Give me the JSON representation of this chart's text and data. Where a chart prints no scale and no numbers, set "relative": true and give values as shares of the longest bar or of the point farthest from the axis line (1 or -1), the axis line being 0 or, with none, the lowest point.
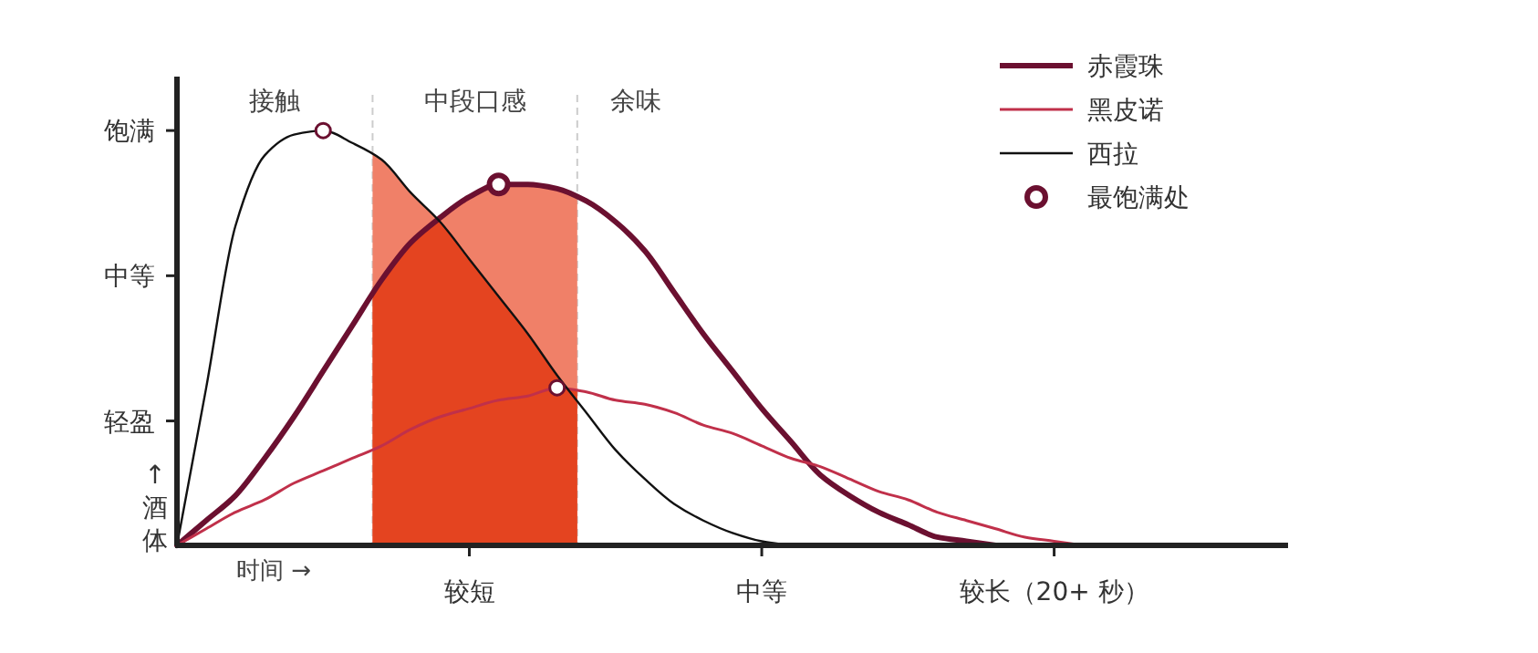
{
  "chart_data": {
    "type": "line",
    "relative": true,
    "xlabel": "时间 →",
    "ylabel": "↑酒体",
    "categories": [
      null,
      null,
      null,
      null,
      null,
      null,
      null,
      null,
      null,
      null,
      "较短",
      null,
      null,
      null,
      null,
      null,
      null,
      null,
      null,
      null,
      "中等",
      null,
      null,
      null,
      null,
      null,
      null,
      null,
      null,
      null,
      "较长（20+ 秒）",
      null,
      null,
      null,
      null,
      null,
      null,
      null,
      null
    ],
    "series": [
      {
        "name": "赤霞珠",
        "color": "#6b1030",
        "values": [
          0,
          0.06,
          0.12,
          0.21,
          0.31,
          0.42,
          0.53,
          0.64,
          0.73,
          0.79,
          0.84,
          0.87,
          0.87,
          0.86,
          0.83,
          0.78,
          0.71,
          0.61,
          0.51,
          0.42,
          0.33,
          0.25,
          0.17,
          0.12,
          0.08,
          0.05,
          0.02,
          0.01,
          0,
          null,
          null,
          null,
          null,
          null,
          null,
          null,
          null,
          null,
          null
        ]
      },
      {
        "name": "黑皮诺",
        "color": "#c0304a",
        "values": [
          0,
          0.04,
          0.08,
          0.11,
          0.15,
          0.18,
          0.21,
          0.24,
          0.28,
          0.31,
          0.33,
          0.35,
          0.36,
          0.38,
          0.37,
          0.35,
          0.34,
          0.32,
          0.29,
          0.27,
          0.24,
          0.21,
          0.19,
          0.16,
          0.13,
          0.11,
          0.08,
          0.06,
          0.04,
          0.02,
          0.01,
          0,
          null,
          null,
          null,
          null,
          null,
          null,
          null
        ]
      },
      {
        "name": "西拉",
        "color": "#111111",
        "values": [
          0,
          0.38,
          0.77,
          0.94,
          0.99,
          1,
          0.97,
          0.93,
          0.85,
          0.78,
          0.69,
          0.6,
          0.51,
          0.41,
          0.32,
          0.23,
          0.16,
          0.1,
          0.06,
          0.03,
          0.01,
          0,
          null,
          null,
          null,
          null,
          null,
          null,
          null,
          null,
          null,
          null,
          null,
          null,
          null,
          null,
          null,
          null,
          null
        ]
      },
      {
        "name": "最饱满处",
        "type": "scatter",
        "marker": "circle",
        "color": "#6b1030",
        "values": [
          null,
          null,
          null,
          null,
          null,
          1,
          null,
          null,
          null,
          null,
          null,
          0.87,
          null,
          0.38,
          null,
          null,
          null,
          null,
          null,
          null,
          null,
          null,
          null,
          null,
          null,
          null,
          null,
          null,
          null,
          null,
          null,
          null,
          null,
          null,
          null,
          null,
          null,
          null,
          null
        ]
      }
    ],
    "annotations": [
      "轻盈",
      "中等",
      "饱满",
      "接触",
      "中段口感",
      "余味"
    ],
    "legend": "top right"
  }
}
